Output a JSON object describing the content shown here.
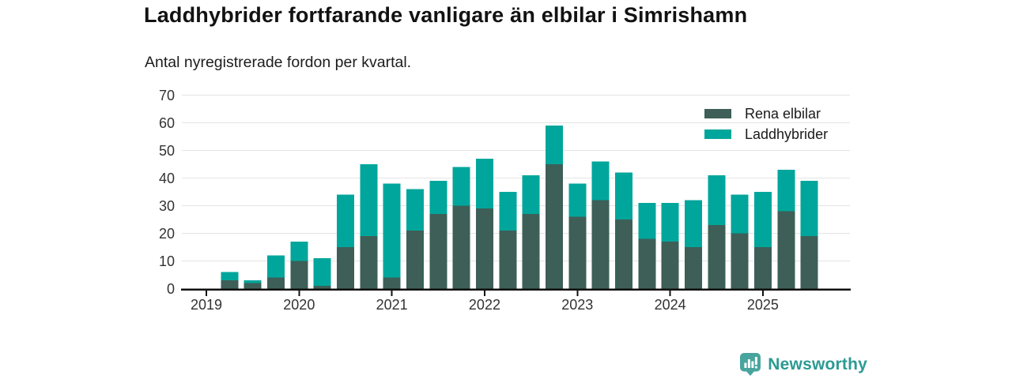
{
  "chart_data": {
    "type": "bar",
    "stacked": true,
    "title": "Laddhybrider fortfarande vanligare än elbilar i Simrishamn",
    "subtitle": "Antal nyregistrerade fordon per kvartal.",
    "x": [
      "2019Q2",
      "2019Q3",
      "2019Q4",
      "2020Q1",
      "2020Q2",
      "2020Q3",
      "2020Q4",
      "2021Q1",
      "2021Q2",
      "2021Q3",
      "2021Q4",
      "2022Q1",
      "2022Q2",
      "2022Q3",
      "2022Q4",
      "2023Q1",
      "2023Q2",
      "2023Q3",
      "2023Q4",
      "2024Q1",
      "2024Q2",
      "2024Q3",
      "2024Q4",
      "2025Q1",
      "2025Q2",
      "2025Q3"
    ],
    "x_tick_labels": [
      "2019",
      "2020",
      "2021",
      "2022",
      "2023",
      "2024",
      "2025"
    ],
    "y_ticks": [
      0,
      10,
      20,
      30,
      40,
      50,
      60,
      70
    ],
    "ylim": [
      0,
      70
    ],
    "grid": "horizontal",
    "legend_position": "top-right",
    "series": [
      {
        "name": "Rena elbilar",
        "color": "#3d5f58",
        "values": [
          3,
          2,
          4,
          10,
          1,
          15,
          19,
          4,
          21,
          27,
          30,
          29,
          21,
          27,
          45,
          26,
          32,
          25,
          18,
          17,
          15,
          23,
          20,
          15,
          28,
          19
        ]
      },
      {
        "name": "Laddhybrider",
        "color": "#00a69b",
        "values": [
          3,
          1,
          8,
          7,
          10,
          19,
          26,
          34,
          15,
          12,
          14,
          18,
          14,
          14,
          14,
          12,
          14,
          17,
          13,
          14,
          17,
          18,
          14,
          20,
          15,
          20
        ]
      }
    ],
    "colors": {
      "grid": "#e4e4e4",
      "axis": "#111111",
      "tick_labels": "#333333"
    }
  },
  "branding": {
    "wordmark": "Newsworthy",
    "icon": "newsworthy-badge-icon",
    "color": "#2c9a92",
    "icon_color": "#48a59e"
  }
}
